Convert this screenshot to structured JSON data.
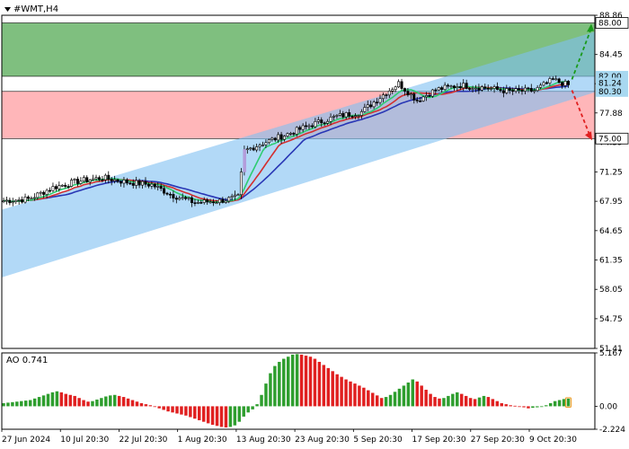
{
  "header": {
    "symbol_title": "#WMT,H4",
    "menu_icon": "triangle-down-icon"
  },
  "colors": {
    "upper_zone": "#7fbf7f",
    "lower_zone": "#ffb6b9",
    "channel": "#7fbff2",
    "candle": "#000000",
    "highlight_candle": "#b39ddb",
    "ma_fast": "#2ecc71",
    "ma_mid": "#d32f2f",
    "ma_slow": "#2836b5",
    "ao_up": "#2e9e2e",
    "ao_down": "#e02020",
    "arrow_up": "#1a9a1a",
    "arrow_down": "#e02020",
    "tag_fill": "#a8d8f0"
  },
  "chart_data": [
    {
      "type": "candlestick",
      "title": "#WMT,H4",
      "ylim": [
        51.41,
        88.86
      ],
      "yticks": [
        "88.86",
        "84.45",
        "81.17",
        "77.88",
        "74.59",
        "71.25",
        "67.95",
        "64.65",
        "61.35",
        "58.05",
        "54.75",
        "51.41"
      ],
      "x_tick_labels": [
        "27 Jun 2024",
        "10 Jul 20:30",
        "22 Jul 20:30",
        "1 Aug 20:30",
        "13 Aug 20:30",
        "23 Aug 20:30",
        "5 Sep 20:30",
        "17 Sep 20:30",
        "27 Sep 20:30",
        "9 Oct 20:30"
      ],
      "zones": [
        {
          "name": "upper",
          "from": 82.0,
          "to": 88.0
        },
        {
          "name": "lower",
          "from": 75.0,
          "to": 80.3
        }
      ],
      "trend_channel": {
        "start": {
          "lower": 59.4,
          "upper": 67.0
        },
        "end": {
          "lower": 80.2,
          "upper": 87.0
        }
      },
      "price_tags": [
        "88.00",
        "82.00",
        "81.24",
        "80.30",
        "75.00"
      ],
      "close_path": [
        {
          "bar": 0,
          "close": 68.0
        },
        {
          "bar": 8,
          "close": 68.2
        },
        {
          "bar": 16,
          "close": 69.5
        },
        {
          "bar": 24,
          "close": 70.2
        },
        {
          "bar": 32,
          "close": 70.6
        },
        {
          "bar": 40,
          "close": 70.1
        },
        {
          "bar": 48,
          "close": 69.8
        },
        {
          "bar": 55,
          "close": 68.6
        },
        {
          "bar": 62,
          "close": 67.8
        },
        {
          "bar": 70,
          "close": 68.0
        },
        {
          "bar": 76,
          "close": 68.4
        },
        {
          "bar": 78,
          "close": 73.6
        },
        {
          "bar": 84,
          "close": 74.5
        },
        {
          "bar": 92,
          "close": 75.5
        },
        {
          "bar": 100,
          "close": 76.6
        },
        {
          "bar": 108,
          "close": 77.5
        },
        {
          "bar": 116,
          "close": 78.0
        },
        {
          "bar": 124,
          "close": 80.2
        },
        {
          "bar": 128,
          "close": 81.2
        },
        {
          "bar": 134,
          "close": 79.3
        },
        {
          "bar": 140,
          "close": 80.5
        },
        {
          "bar": 148,
          "close": 81.0
        },
        {
          "bar": 156,
          "close": 80.7
        },
        {
          "bar": 164,
          "close": 80.3
        },
        {
          "bar": 172,
          "close": 80.4
        },
        {
          "bar": 178,
          "close": 81.6
        },
        {
          "bar": 183,
          "close": 81.0
        }
      ]
    },
    {
      "type": "bar",
      "title": "AO 0.741",
      "ylim": [
        -2.224,
        5.167
      ],
      "yticks": [
        "5.167",
        "0.00",
        "-2.224"
      ],
      "current_value": 0.741,
      "values": [
        0.3,
        0.35,
        0.4,
        0.45,
        0.5,
        0.55,
        0.6,
        0.75,
        0.9,
        1.05,
        1.2,
        1.35,
        1.45,
        1.35,
        1.2,
        1.1,
        1.0,
        0.8,
        0.6,
        0.45,
        0.5,
        0.65,
        0.8,
        0.95,
        1.05,
        1.1,
        1.0,
        0.9,
        0.75,
        0.6,
        0.45,
        0.3,
        0.2,
        0.1,
        -0.05,
        -0.2,
        -0.35,
        -0.5,
        -0.6,
        -0.7,
        -0.8,
        -0.9,
        -1.05,
        -1.2,
        -1.35,
        -1.5,
        -1.65,
        -1.8,
        -1.9,
        -2.0,
        -2.05,
        -2.0,
        -1.85,
        -1.5,
        -1.0,
        -0.6,
        -0.3,
        0.2,
        1.1,
        2.2,
        3.2,
        3.9,
        4.3,
        4.6,
        4.8,
        5.0,
        5.05,
        5.0,
        4.9,
        4.8,
        4.6,
        4.3,
        4.0,
        3.7,
        3.4,
        3.1,
        2.85,
        2.6,
        2.4,
        2.2,
        2.0,
        1.8,
        1.55,
        1.3,
        1.05,
        0.8,
        0.9,
        1.1,
        1.4,
        1.7,
        2.0,
        2.3,
        2.6,
        2.4,
        2.0,
        1.6,
        1.2,
        0.9,
        0.75,
        0.8,
        1.0,
        1.2,
        1.35,
        1.2,
        1.0,
        0.8,
        0.7,
        0.85,
        1.0,
        0.9,
        0.7,
        0.5,
        0.3,
        0.2,
        0.1,
        0.05,
        0.0,
        -0.1,
        -0.2,
        -0.15,
        -0.1,
        -0.05,
        0.1,
        0.3,
        0.5,
        0.6,
        0.7,
        0.74
      ]
    }
  ]
}
